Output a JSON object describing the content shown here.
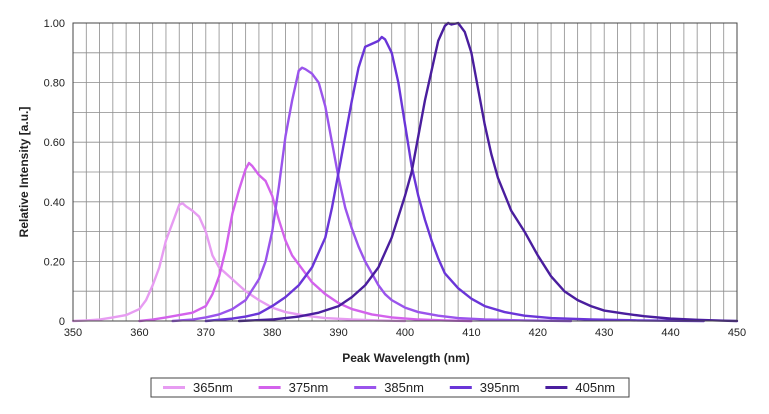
{
  "chart_data": {
    "type": "line",
    "title": "",
    "xlabel": "Peak Wavelength (nm)",
    "ylabel": "Relative Intensity [a.u.]",
    "xlim": [
      350,
      450
    ],
    "ylim": [
      0,
      1.0
    ],
    "x_ticks": [
      "350",
      "360",
      "370",
      "380",
      "390",
      "400",
      "410",
      "420",
      "430",
      "440",
      "450"
    ],
    "y_ticks": [
      "0",
      "0.20",
      "0.40",
      "0.60",
      "0.80",
      "1.00"
    ],
    "grid": true,
    "legend_position": "bottom",
    "series": [
      {
        "name": "365nm",
        "color": "#e79cf2",
        "points": [
          [
            350,
            0
          ],
          [
            352,
            0.002
          ],
          [
            354,
            0.005
          ],
          [
            356,
            0.012
          ],
          [
            358,
            0.02
          ],
          [
            360,
            0.04
          ],
          [
            361,
            0.07
          ],
          [
            362,
            0.12
          ],
          [
            363,
            0.18
          ],
          [
            364,
            0.27
          ],
          [
            365,
            0.33
          ],
          [
            366,
            0.39
          ],
          [
            366.5,
            0.395
          ],
          [
            367,
            0.385
          ],
          [
            368,
            0.37
          ],
          [
            369,
            0.35
          ],
          [
            370,
            0.3
          ],
          [
            371,
            0.22
          ],
          [
            372,
            0.18
          ],
          [
            373,
            0.16
          ],
          [
            374,
            0.14
          ],
          [
            375,
            0.12
          ],
          [
            376,
            0.1
          ],
          [
            378,
            0.07
          ],
          [
            380,
            0.045
          ],
          [
            382,
            0.03
          ],
          [
            385,
            0.018
          ],
          [
            388,
            0.01
          ],
          [
            392,
            0.005
          ],
          [
            396,
            0.002
          ],
          [
            400,
            0
          ]
        ]
      },
      {
        "name": "375nm",
        "color": "#d362ec",
        "points": [
          [
            360,
            0
          ],
          [
            362,
            0.005
          ],
          [
            364,
            0.012
          ],
          [
            366,
            0.02
          ],
          [
            368,
            0.028
          ],
          [
            370,
            0.05
          ],
          [
            371,
            0.09
          ],
          [
            372,
            0.15
          ],
          [
            373,
            0.24
          ],
          [
            374,
            0.36
          ],
          [
            375,
            0.44
          ],
          [
            376,
            0.51
          ],
          [
            376.5,
            0.53
          ],
          [
            377,
            0.52
          ],
          [
            378,
            0.49
          ],
          [
            379,
            0.47
          ],
          [
            380,
            0.42
          ],
          [
            381,
            0.34
          ],
          [
            382,
            0.27
          ],
          [
            383,
            0.22
          ],
          [
            384,
            0.19
          ],
          [
            385,
            0.16
          ],
          [
            386,
            0.13
          ],
          [
            388,
            0.09
          ],
          [
            390,
            0.06
          ],
          [
            392,
            0.04
          ],
          [
            395,
            0.022
          ],
          [
            398,
            0.012
          ],
          [
            402,
            0.005
          ],
          [
            406,
            0.002
          ],
          [
            410,
            0
          ]
        ]
      },
      {
        "name": "385nm",
        "color": "#9a54ec",
        "points": [
          [
            365,
            0
          ],
          [
            368,
            0.005
          ],
          [
            370,
            0.012
          ],
          [
            372,
            0.022
          ],
          [
            374,
            0.04
          ],
          [
            376,
            0.07
          ],
          [
            378,
            0.14
          ],
          [
            379,
            0.2
          ],
          [
            380,
            0.3
          ],
          [
            381,
            0.45
          ],
          [
            382,
            0.62
          ],
          [
            383,
            0.74
          ],
          [
            384,
            0.84
          ],
          [
            384.5,
            0.85
          ],
          [
            385,
            0.845
          ],
          [
            386,
            0.83
          ],
          [
            387,
            0.8
          ],
          [
            388,
            0.72
          ],
          [
            389,
            0.6
          ],
          [
            390,
            0.48
          ],
          [
            391,
            0.38
          ],
          [
            392,
            0.31
          ],
          [
            393,
            0.25
          ],
          [
            394,
            0.2
          ],
          [
            395,
            0.16
          ],
          [
            396,
            0.12
          ],
          [
            397,
            0.09
          ],
          [
            398,
            0.07
          ],
          [
            400,
            0.045
          ],
          [
            402,
            0.03
          ],
          [
            405,
            0.018
          ],
          [
            408,
            0.01
          ],
          [
            412,
            0.005
          ],
          [
            418,
            0.002
          ],
          [
            425,
            0
          ]
        ]
      },
      {
        "name": "395nm",
        "color": "#6a35d8",
        "points": [
          [
            370,
            0
          ],
          [
            374,
            0.008
          ],
          [
            376,
            0.015
          ],
          [
            378,
            0.025
          ],
          [
            380,
            0.05
          ],
          [
            382,
            0.08
          ],
          [
            384,
            0.12
          ],
          [
            386,
            0.18
          ],
          [
            388,
            0.28
          ],
          [
            389,
            0.38
          ],
          [
            390,
            0.5
          ],
          [
            391,
            0.62
          ],
          [
            392,
            0.74
          ],
          [
            393,
            0.85
          ],
          [
            394,
            0.92
          ],
          [
            395,
            0.93
          ],
          [
            396,
            0.94
          ],
          [
            396.5,
            0.953
          ],
          [
            397,
            0.945
          ],
          [
            398,
            0.9
          ],
          [
            399,
            0.8
          ],
          [
            400,
            0.66
          ],
          [
            401,
            0.52
          ],
          [
            402,
            0.42
          ],
          [
            403,
            0.34
          ],
          [
            404,
            0.27
          ],
          [
            405,
            0.21
          ],
          [
            406,
            0.16
          ],
          [
            408,
            0.11
          ],
          [
            410,
            0.075
          ],
          [
            412,
            0.05
          ],
          [
            415,
            0.03
          ],
          [
            418,
            0.018
          ],
          [
            422,
            0.01
          ],
          [
            428,
            0.005
          ],
          [
            435,
            0.002
          ],
          [
            445,
            0
          ]
        ]
      },
      {
        "name": "405nm",
        "color": "#4a1e9e",
        "points": [
          [
            375,
            0
          ],
          [
            380,
            0.005
          ],
          [
            384,
            0.015
          ],
          [
            387,
            0.028
          ],
          [
            390,
            0.05
          ],
          [
            392,
            0.08
          ],
          [
            394,
            0.12
          ],
          [
            396,
            0.18
          ],
          [
            398,
            0.28
          ],
          [
            400,
            0.42
          ],
          [
            401,
            0.5
          ],
          [
            402,
            0.62
          ],
          [
            403,
            0.74
          ],
          [
            404,
            0.84
          ],
          [
            405,
            0.94
          ],
          [
            406,
            0.99
          ],
          [
            406.5,
            1.0
          ],
          [
            407,
            0.995
          ],
          [
            408,
            1.0
          ],
          [
            409,
            0.97
          ],
          [
            410,
            0.9
          ],
          [
            411,
            0.78
          ],
          [
            412,
            0.66
          ],
          [
            413,
            0.56
          ],
          [
            414,
            0.48
          ],
          [
            416,
            0.37
          ],
          [
            418,
            0.3
          ],
          [
            420,
            0.22
          ],
          [
            422,
            0.15
          ],
          [
            424,
            0.1
          ],
          [
            426,
            0.07
          ],
          [
            428,
            0.05
          ],
          [
            430,
            0.035
          ],
          [
            433,
            0.025
          ],
          [
            436,
            0.016
          ],
          [
            440,
            0.008
          ],
          [
            444,
            0.004
          ],
          [
            448,
            0.001
          ],
          [
            450,
            0
          ]
        ]
      }
    ]
  }
}
